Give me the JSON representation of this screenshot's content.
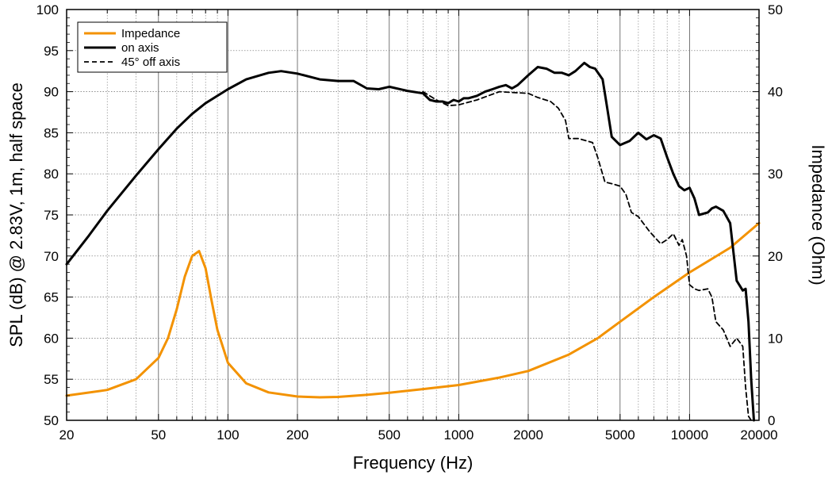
{
  "chart_data": {
    "type": "line",
    "xscale": "log",
    "xlim": [
      20,
      20000
    ],
    "ylim_left": [
      50,
      100
    ],
    "ylim_right": [
      0,
      50
    ],
    "grid": true,
    "legend_position": "top-left",
    "xlabel": "Frequency (Hz)",
    "ylabel_left": "SPL (dB) @ 2.83V, 1m, half space",
    "ylabel_right": "Impedance (Ohm)",
    "x_ticks": [
      20,
      50,
      100,
      200,
      500,
      1000,
      2000,
      5000,
      10000,
      20000
    ],
    "x_tick_labels": [
      "20",
      "50",
      "100",
      "200",
      "500",
      "1000",
      "2000",
      "5000",
      "10000",
      "20000"
    ],
    "y_left_ticks": [
      50,
      55,
      60,
      65,
      70,
      75,
      80,
      85,
      90,
      95,
      100
    ],
    "y_left_tick_labels": [
      "50",
      "55",
      "60",
      "65",
      "70",
      "75",
      "80",
      "85",
      "90",
      "95",
      "100"
    ],
    "y_right_ticks": [
      0,
      10,
      20,
      30,
      40,
      50
    ],
    "y_right_tick_labels": [
      "0",
      "10",
      "20",
      "30",
      "40",
      "50"
    ],
    "colors": {
      "impedance": "#f39200",
      "on_axis": "#000000",
      "off_axis": "#000000"
    },
    "series": [
      {
        "name": "Impedance",
        "axis": "right",
        "style": "solid",
        "x": [
          20,
          30,
          40,
          50,
          55,
          60,
          65,
          70,
          75,
          80,
          85,
          90,
          100,
          120,
          150,
          200,
          250,
          300,
          400,
          500,
          700,
          1000,
          1500,
          2000,
          3000,
          4000,
          5000,
          7000,
          10000,
          15000,
          20000
        ],
        "y": [
          3.0,
          3.7,
          5.0,
          7.6,
          10.0,
          13.5,
          17.5,
          20.0,
          20.6,
          18.5,
          14.5,
          11.0,
          7.0,
          4.5,
          3.4,
          2.9,
          2.8,
          2.85,
          3.1,
          3.35,
          3.8,
          4.3,
          5.2,
          6.0,
          8.0,
          10.0,
          12.0,
          15.0,
          18.0,
          21.0,
          24.0
        ]
      },
      {
        "name": "on axis",
        "axis": "left",
        "style": "solid",
        "x": [
          20,
          25,
          30,
          40,
          50,
          60,
          70,
          80,
          100,
          120,
          150,
          170,
          200,
          250,
          300,
          350,
          400,
          450,
          500,
          600,
          700,
          750,
          800,
          850,
          900,
          950,
          1000,
          1050,
          1100,
          1200,
          1300,
          1400,
          1500,
          1600,
          1700,
          1800,
          2000,
          2200,
          2400,
          2600,
          2800,
          3000,
          3200,
          3500,
          3700,
          3900,
          4200,
          4400,
          4600,
          4800,
          5000,
          5500,
          6000,
          6500,
          7000,
          7500,
          8000,
          8500,
          9000,
          9500,
          10000,
          10500,
          11000,
          12000,
          12500,
          13000,
          14000,
          15000,
          16000,
          17000,
          17500,
          18000,
          18500,
          19000
        ],
        "y": [
          69.0,
          72.5,
          75.5,
          79.8,
          83.0,
          85.5,
          87.3,
          88.6,
          90.3,
          91.5,
          92.3,
          92.5,
          92.2,
          91.5,
          91.3,
          91.3,
          90.4,
          90.3,
          90.6,
          90.1,
          89.8,
          89.0,
          88.8,
          88.8,
          88.6,
          89.0,
          88.8,
          89.2,
          89.2,
          89.5,
          90.0,
          90.3,
          90.6,
          90.8,
          90.4,
          90.8,
          92.0,
          93.0,
          92.8,
          92.3,
          92.3,
          92.0,
          92.5,
          93.5,
          93.0,
          92.8,
          91.5,
          88.0,
          84.5,
          84.0,
          83.5,
          84.0,
          85.0,
          84.2,
          84.7,
          84.3,
          82.0,
          80.0,
          78.5,
          78.0,
          78.3,
          77.0,
          75.0,
          75.3,
          75.8,
          76.0,
          75.5,
          74.0,
          67.0,
          65.8,
          66.0,
          62.0,
          55.0,
          50.0
        ]
      },
      {
        "name": "45° off axis",
        "axis": "left",
        "style": "dashed",
        "x": [
          700,
          800,
          900,
          1000,
          1200,
          1500,
          1700,
          2000,
          2200,
          2500,
          2700,
          2900,
          3000,
          3300,
          3600,
          3800,
          4000,
          4300,
          4600,
          5000,
          5300,
          5600,
          6000,
          6300,
          6700,
          7000,
          7500,
          8000,
          8500,
          9000,
          9300,
          9700,
          10000,
          10500,
          11000,
          12000,
          12500,
          13000,
          14000,
          15000,
          16000,
          17000,
          17500,
          18000,
          18500
        ],
        "y": [
          90.0,
          89.0,
          88.3,
          88.4,
          89.0,
          90.0,
          89.9,
          89.8,
          89.3,
          88.8,
          88.0,
          86.5,
          84.3,
          84.3,
          84.0,
          83.8,
          82.0,
          79.0,
          78.8,
          78.5,
          77.5,
          75.3,
          74.8,
          74.0,
          73.0,
          72.4,
          71.5,
          72.0,
          72.7,
          71.3,
          72.0,
          70.0,
          66.5,
          66.0,
          65.8,
          66.0,
          65.0,
          62.0,
          61.0,
          59.0,
          60.0,
          59.0,
          54.0,
          50.5,
          50.0
        ]
      }
    ]
  }
}
